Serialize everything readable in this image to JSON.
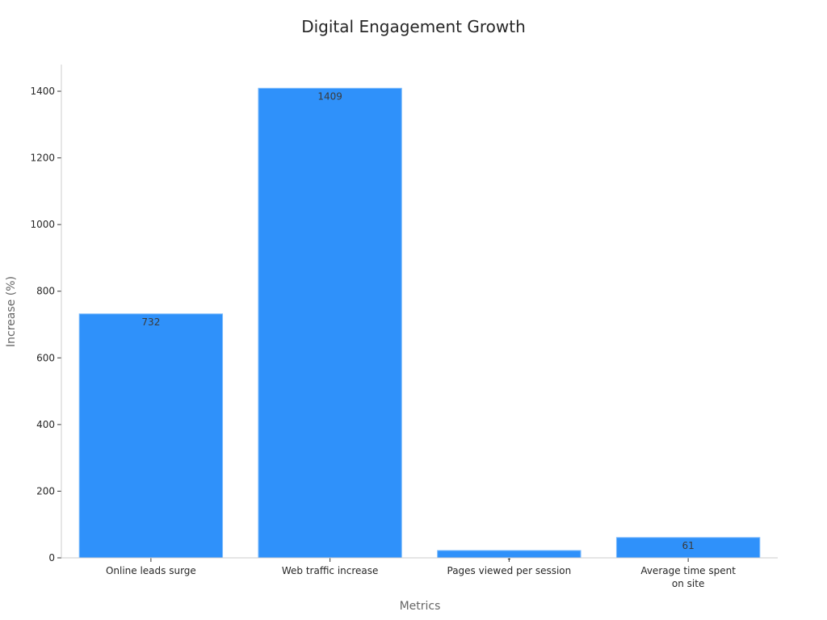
{
  "chart_data": {
    "type": "bar",
    "title": "Digital Engagement Growth",
    "xlabel": "Metrics",
    "ylabel": "Increase (%)",
    "categories": [
      [
        "Online leads surge"
      ],
      [
        "Web traffic increase"
      ],
      [
        "Pages viewed per session"
      ],
      [
        "Average time spent",
        "on site"
      ]
    ],
    "values": [
      732,
      1409,
      22,
      61
    ],
    "data_labels": [
      "732",
      "1409",
      "-",
      "61"
    ],
    "ylim": [
      0,
      1480
    ],
    "yticks": [
      0,
      200,
      400,
      600,
      800,
      1000,
      1200,
      1400
    ],
    "grid": false,
    "legend": "none",
    "colors": {
      "bar": "#2f91fa",
      "bar_edge": "#7fbcfc"
    }
  }
}
